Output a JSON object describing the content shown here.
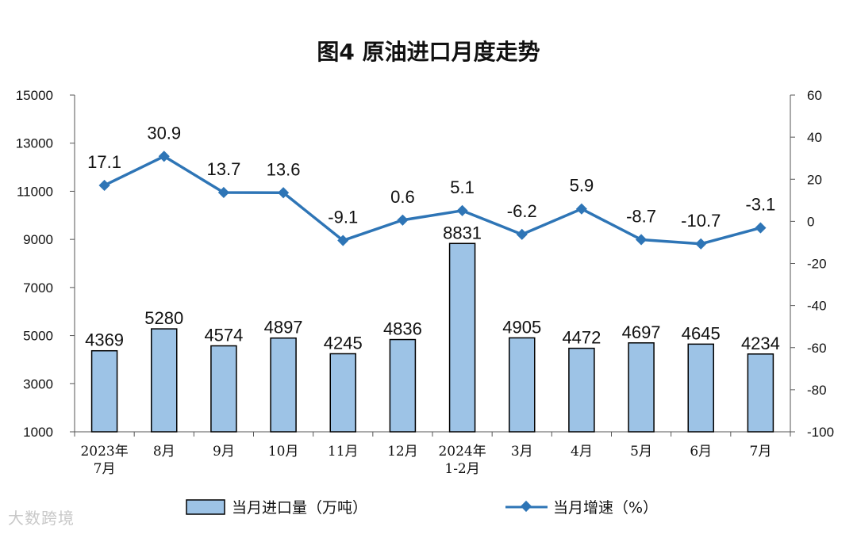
{
  "chart_data": {
    "type": "bar",
    "title": "图4  原油进口月度走势",
    "categories": [
      "2023年\n7月",
      "8月",
      "9月",
      "10月",
      "11月",
      "12月",
      "2024年\n1-2月",
      "3月",
      "4月",
      "5月",
      "6月",
      "7月"
    ],
    "series": [
      {
        "name": "当月进口量（万吨）",
        "type": "bar",
        "axis": "left",
        "values": [
          4369,
          5280,
          4574,
          4897,
          4245,
          4836,
          8831,
          4905,
          4472,
          4697,
          4645,
          4234
        ]
      },
      {
        "name": "当月增速（%）",
        "type": "line",
        "axis": "right",
        "values": [
          17.1,
          30.9,
          13.7,
          13.6,
          -9.1,
          0.6,
          5.1,
          -6.2,
          5.9,
          -8.7,
          -10.7,
          -3.1
        ]
      }
    ],
    "ylim_left": [
      1000,
      15000
    ],
    "yticks_left": [
      1000,
      3000,
      5000,
      7000,
      9000,
      11000,
      13000,
      15000
    ],
    "ylim_right": [
      -100,
      60
    ],
    "yticks_right": [
      -100,
      -80,
      -60,
      -40,
      -20,
      0,
      20,
      40,
      60
    ],
    "legend": "bottom",
    "grid": false,
    "colors": {
      "bar_fill": "#9dc3e6",
      "bar_stroke": "#000000",
      "line": "#2e75b6"
    }
  },
  "watermark": "大数跨境"
}
